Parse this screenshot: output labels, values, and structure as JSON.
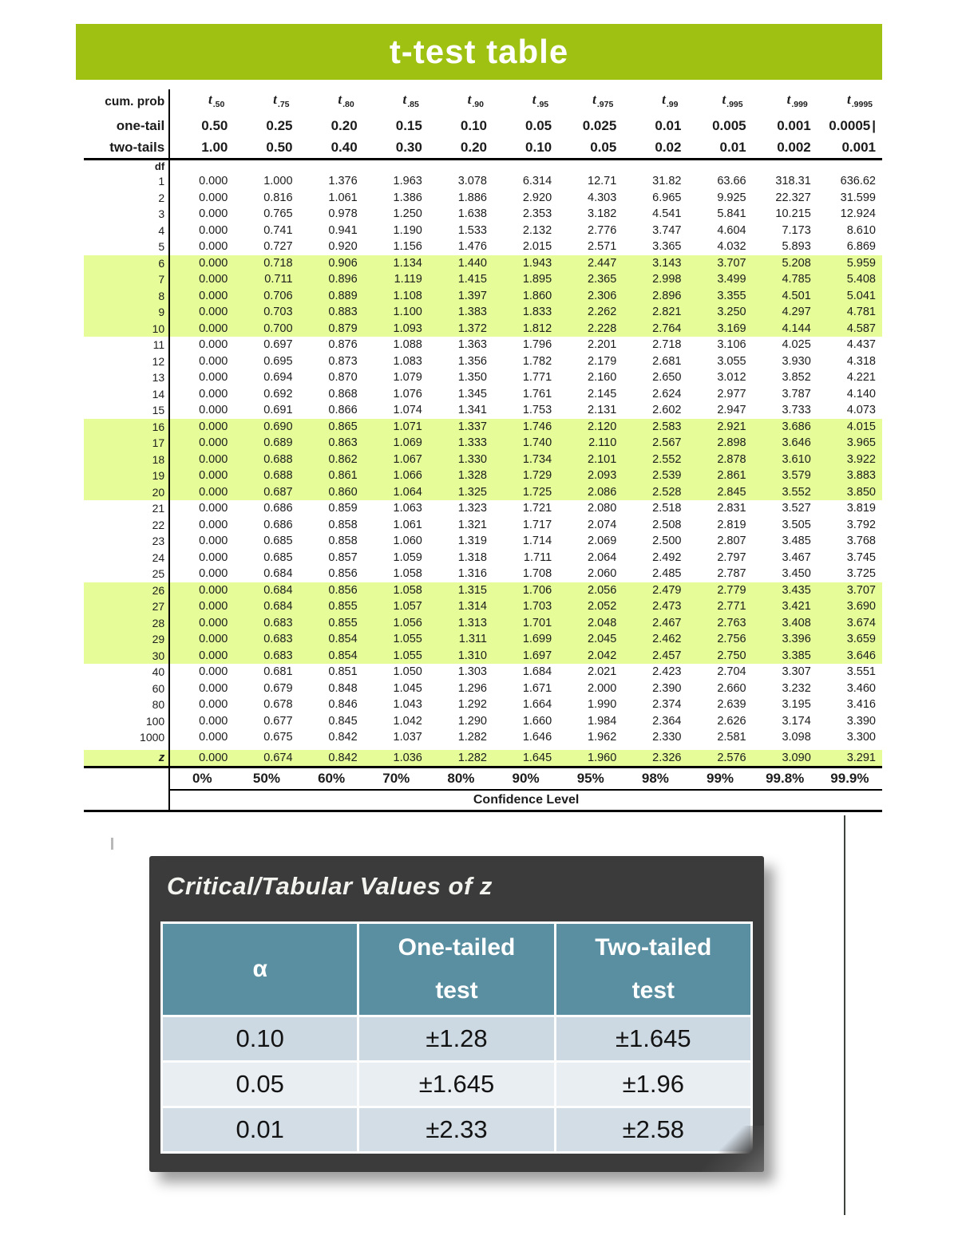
{
  "header_bar": {
    "label": "t-test table",
    "bg_color": "#9fc212",
    "text_color": "#ffffff"
  },
  "t_table": {
    "corner": {
      "row1": "cum. prob",
      "row2": "one-tail",
      "row3": "two-tails",
      "row4": "df",
      "z_label": "z"
    },
    "t_symbol": "t",
    "t_subscripts": [
      ".50",
      ".75",
      ".80",
      ".85",
      ".90",
      ".95",
      ".975",
      ".99",
      ".995",
      ".999",
      ".9995"
    ],
    "one_tail": [
      "0.50",
      "0.25",
      "0.20",
      "0.15",
      "0.10",
      "0.05",
      "0.025",
      "0.01",
      "0.005",
      "0.001",
      "0.0005"
    ],
    "text_cursor": "|",
    "two_tails": [
      "1.00",
      "0.50",
      "0.40",
      "0.30",
      "0.20",
      "0.10",
      "0.05",
      "0.02",
      "0.01",
      "0.002",
      "0.001"
    ],
    "highlight_color": "#e5fc98",
    "rows": [
      {
        "df": "1",
        "highlight": false,
        "values": [
          "0.000",
          "1.000",
          "1.376",
          "1.963",
          "3.078",
          "6.314",
          "12.71",
          "31.82",
          "63.66",
          "318.31",
          "636.62"
        ]
      },
      {
        "df": "2",
        "highlight": false,
        "values": [
          "0.000",
          "0.816",
          "1.061",
          "1.386",
          "1.886",
          "2.920",
          "4.303",
          "6.965",
          "9.925",
          "22.327",
          "31.599"
        ]
      },
      {
        "df": "3",
        "highlight": false,
        "values": [
          "0.000",
          "0.765",
          "0.978",
          "1.250",
          "1.638",
          "2.353",
          "3.182",
          "4.541",
          "5.841",
          "10.215",
          "12.924"
        ]
      },
      {
        "df": "4",
        "highlight": false,
        "values": [
          "0.000",
          "0.741",
          "0.941",
          "1.190",
          "1.533",
          "2.132",
          "2.776",
          "3.747",
          "4.604",
          "7.173",
          "8.610"
        ]
      },
      {
        "df": "5",
        "highlight": false,
        "values": [
          "0.000",
          "0.727",
          "0.920",
          "1.156",
          "1.476",
          "2.015",
          "2.571",
          "3.365",
          "4.032",
          "5.893",
          "6.869"
        ]
      },
      {
        "df": "6",
        "highlight": true,
        "values": [
          "0.000",
          "0.718",
          "0.906",
          "1.134",
          "1.440",
          "1.943",
          "2.447",
          "3.143",
          "3.707",
          "5.208",
          "5.959"
        ]
      },
      {
        "df": "7",
        "highlight": true,
        "values": [
          "0.000",
          "0.711",
          "0.896",
          "1.119",
          "1.415",
          "1.895",
          "2.365",
          "2.998",
          "3.499",
          "4.785",
          "5.408"
        ]
      },
      {
        "df": "8",
        "highlight": true,
        "values": [
          "0.000",
          "0.706",
          "0.889",
          "1.108",
          "1.397",
          "1.860",
          "2.306",
          "2.896",
          "3.355",
          "4.501",
          "5.041"
        ]
      },
      {
        "df": "9",
        "highlight": true,
        "values": [
          "0.000",
          "0.703",
          "0.883",
          "1.100",
          "1.383",
          "1.833",
          "2.262",
          "2.821",
          "3.250",
          "4.297",
          "4.781"
        ]
      },
      {
        "df": "10",
        "highlight": true,
        "values": [
          "0.000",
          "0.700",
          "0.879",
          "1.093",
          "1.372",
          "1.812",
          "2.228",
          "2.764",
          "3.169",
          "4.144",
          "4.587"
        ]
      },
      {
        "df": "11",
        "highlight": false,
        "values": [
          "0.000",
          "0.697",
          "0.876",
          "1.088",
          "1.363",
          "1.796",
          "2.201",
          "2.718",
          "3.106",
          "4.025",
          "4.437"
        ]
      },
      {
        "df": "12",
        "highlight": false,
        "values": [
          "0.000",
          "0.695",
          "0.873",
          "1.083",
          "1.356",
          "1.782",
          "2.179",
          "2.681",
          "3.055",
          "3.930",
          "4.318"
        ]
      },
      {
        "df": "13",
        "highlight": false,
        "values": [
          "0.000",
          "0.694",
          "0.870",
          "1.079",
          "1.350",
          "1.771",
          "2.160",
          "2.650",
          "3.012",
          "3.852",
          "4.221"
        ]
      },
      {
        "df": "14",
        "highlight": false,
        "values": [
          "0.000",
          "0.692",
          "0.868",
          "1.076",
          "1.345",
          "1.761",
          "2.145",
          "2.624",
          "2.977",
          "3.787",
          "4.140"
        ]
      },
      {
        "df": "15",
        "highlight": false,
        "values": [
          "0.000",
          "0.691",
          "0.866",
          "1.074",
          "1.341",
          "1.753",
          "2.131",
          "2.602",
          "2.947",
          "3.733",
          "4.073"
        ]
      },
      {
        "df": "16",
        "highlight": true,
        "values": [
          "0.000",
          "0.690",
          "0.865",
          "1.071",
          "1.337",
          "1.746",
          "2.120",
          "2.583",
          "2.921",
          "3.686",
          "4.015"
        ]
      },
      {
        "df": "17",
        "highlight": true,
        "values": [
          "0.000",
          "0.689",
          "0.863",
          "1.069",
          "1.333",
          "1.740",
          "2.110",
          "2.567",
          "2.898",
          "3.646",
          "3.965"
        ]
      },
      {
        "df": "18",
        "highlight": true,
        "values": [
          "0.000",
          "0.688",
          "0.862",
          "1.067",
          "1.330",
          "1.734",
          "2.101",
          "2.552",
          "2.878",
          "3.610",
          "3.922"
        ]
      },
      {
        "df": "19",
        "highlight": true,
        "values": [
          "0.000",
          "0.688",
          "0.861",
          "1.066",
          "1.328",
          "1.729",
          "2.093",
          "2.539",
          "2.861",
          "3.579",
          "3.883"
        ]
      },
      {
        "df": "20",
        "highlight": true,
        "values": [
          "0.000",
          "0.687",
          "0.860",
          "1.064",
          "1.325",
          "1.725",
          "2.086",
          "2.528",
          "2.845",
          "3.552",
          "3.850"
        ]
      },
      {
        "df": "21",
        "highlight": false,
        "values": [
          "0.000",
          "0.686",
          "0.859",
          "1.063",
          "1.323",
          "1.721",
          "2.080",
          "2.518",
          "2.831",
          "3.527",
          "3.819"
        ]
      },
      {
        "df": "22",
        "highlight": false,
        "values": [
          "0.000",
          "0.686",
          "0.858",
          "1.061",
          "1.321",
          "1.717",
          "2.074",
          "2.508",
          "2.819",
          "3.505",
          "3.792"
        ]
      },
      {
        "df": "23",
        "highlight": false,
        "values": [
          "0.000",
          "0.685",
          "0.858",
          "1.060",
          "1.319",
          "1.714",
          "2.069",
          "2.500",
          "2.807",
          "3.485",
          "3.768"
        ]
      },
      {
        "df": "24",
        "highlight": false,
        "values": [
          "0.000",
          "0.685",
          "0.857",
          "1.059",
          "1.318",
          "1.711",
          "2.064",
          "2.492",
          "2.797",
          "3.467",
          "3.745"
        ]
      },
      {
        "df": "25",
        "highlight": false,
        "values": [
          "0.000",
          "0.684",
          "0.856",
          "1.058",
          "1.316",
          "1.708",
          "2.060",
          "2.485",
          "2.787",
          "3.450",
          "3.725"
        ]
      },
      {
        "df": "26",
        "highlight": true,
        "values": [
          "0.000",
          "0.684",
          "0.856",
          "1.058",
          "1.315",
          "1.706",
          "2.056",
          "2.479",
          "2.779",
          "3.435",
          "3.707"
        ]
      },
      {
        "df": "27",
        "highlight": true,
        "values": [
          "0.000",
          "0.684",
          "0.855",
          "1.057",
          "1.314",
          "1.703",
          "2.052",
          "2.473",
          "2.771",
          "3.421",
          "3.690"
        ]
      },
      {
        "df": "28",
        "highlight": true,
        "values": [
          "0.000",
          "0.683",
          "0.855",
          "1.056",
          "1.313",
          "1.701",
          "2.048",
          "2.467",
          "2.763",
          "3.408",
          "3.674"
        ]
      },
      {
        "df": "29",
        "highlight": true,
        "values": [
          "0.000",
          "0.683",
          "0.854",
          "1.055",
          "1.311",
          "1.699",
          "2.045",
          "2.462",
          "2.756",
          "3.396",
          "3.659"
        ]
      },
      {
        "df": "30",
        "highlight": true,
        "values": [
          "0.000",
          "0.683",
          "0.854",
          "1.055",
          "1.310",
          "1.697",
          "2.042",
          "2.457",
          "2.750",
          "3.385",
          "3.646"
        ]
      },
      {
        "df": "40",
        "highlight": false,
        "values": [
          "0.000",
          "0.681",
          "0.851",
          "1.050",
          "1.303",
          "1.684",
          "2.021",
          "2.423",
          "2.704",
          "3.307",
          "3.551"
        ]
      },
      {
        "df": "60",
        "highlight": false,
        "values": [
          "0.000",
          "0.679",
          "0.848",
          "1.045",
          "1.296",
          "1.671",
          "2.000",
          "2.390",
          "2.660",
          "3.232",
          "3.460"
        ]
      },
      {
        "df": "80",
        "highlight": false,
        "values": [
          "0.000",
          "0.678",
          "0.846",
          "1.043",
          "1.292",
          "1.664",
          "1.990",
          "2.374",
          "2.639",
          "3.195",
          "3.416"
        ]
      },
      {
        "df": "100",
        "highlight": false,
        "values": [
          "0.000",
          "0.677",
          "0.845",
          "1.042",
          "1.290",
          "1.660",
          "1.984",
          "2.364",
          "2.626",
          "3.174",
          "3.390"
        ]
      },
      {
        "df": "1000",
        "highlight": false,
        "values": [
          "0.000",
          "0.675",
          "0.842",
          "1.037",
          "1.282",
          "1.646",
          "1.962",
          "2.330",
          "2.581",
          "3.098",
          "3.300"
        ]
      }
    ],
    "z_row": {
      "label": "z",
      "values": [
        "0.000",
        "0.674",
        "0.842",
        "1.036",
        "1.282",
        "1.645",
        "1.960",
        "2.326",
        "2.576",
        "3.090",
        "3.291"
      ]
    },
    "confidence": {
      "values": [
        "0%",
        "50%",
        "60%",
        "70%",
        "80%",
        "90%",
        "95%",
        "98%",
        "99%",
        "99.8%",
        "99.9%"
      ],
      "label": "Confidence Level"
    }
  },
  "z_table": {
    "title": "Critical/Tabular Values of z",
    "panel_color": "#3b3b3b",
    "header_bg": "#5a8fa1",
    "row_colors": [
      "#ccd9e2",
      "#e9eef3",
      "#d3dde6"
    ],
    "headers": [
      [
        "α"
      ],
      [
        "One-tailed",
        "test"
      ],
      [
        "Two-tailed",
        "test"
      ]
    ],
    "rows": [
      [
        "0.10",
        "±1.28",
        "±1.645"
      ],
      [
        "0.05",
        "±1.645",
        "±1.96"
      ],
      [
        "0.01",
        "±2.33",
        "±2.58"
      ]
    ]
  }
}
